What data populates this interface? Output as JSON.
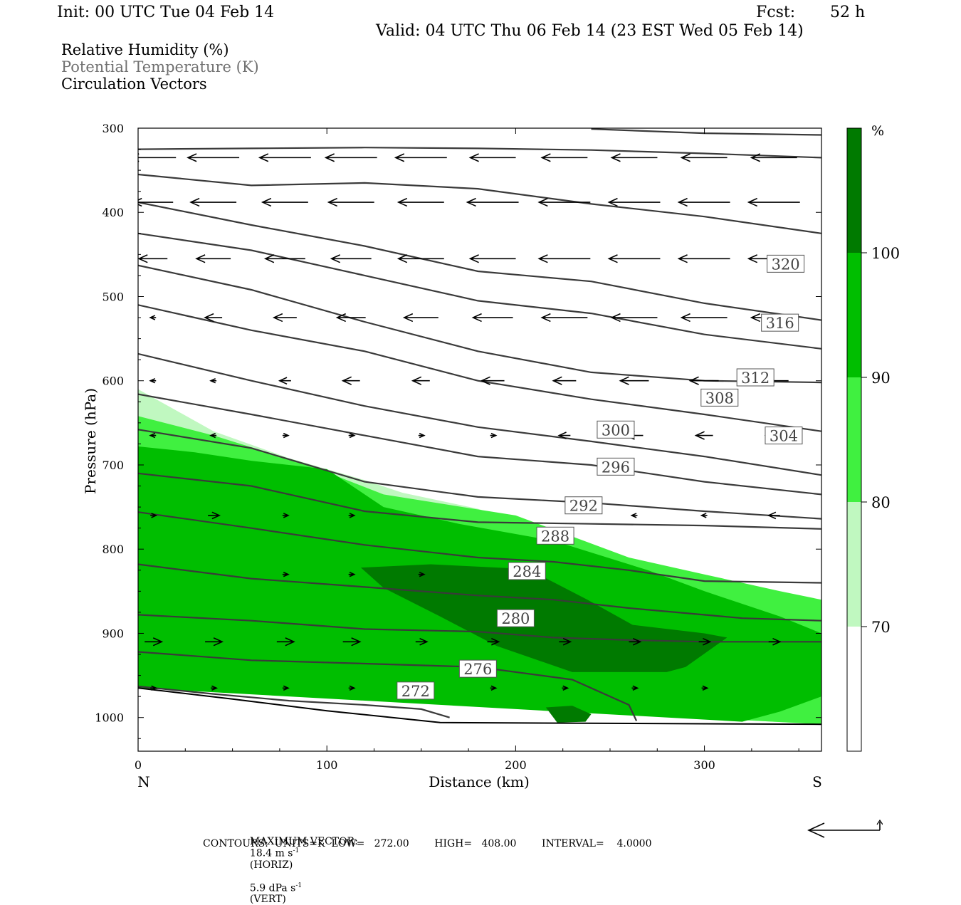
{
  "header": {
    "init": "Init: 00 UTC Tue 04 Feb 14",
    "fcst_label": "Fcst:",
    "fcst_value": "52 h",
    "valid": "Valid: 04 UTC Thu 06 Feb 14 (23 EST Wed 05 Feb 14)"
  },
  "fields": [
    {
      "label": "Relative Humidity (%)",
      "color": "#000000"
    },
    {
      "label": "Potential Temperature (K)",
      "color": "#707070"
    },
    {
      "label": "Circulation Vectors",
      "color": "#000000"
    }
  ],
  "chart_data": {
    "type": "cross-section",
    "x": {
      "label": "Distance (km)",
      "range": [
        0,
        362
      ],
      "ticks": [
        0,
        100,
        200,
        300
      ],
      "left_end": "N",
      "right_end": "S"
    },
    "y": {
      "label": "Pressure (hPa)",
      "range": [
        1040,
        300
      ],
      "ticks": [
        300,
        400,
        500,
        600,
        700,
        800,
        900,
        1000
      ]
    },
    "colorbar": {
      "unit": "%",
      "levels": [
        70,
        80,
        90,
        100
      ],
      "colors": [
        "#ffffff",
        "#c0f8c0",
        "#40f040",
        "#00be00",
        "#007a00"
      ]
    },
    "ground_pressure": [
      [
        0,
        965
      ],
      [
        50,
        978
      ],
      [
        100,
        992
      ],
      [
        160,
        1006
      ],
      [
        362,
        1008
      ]
    ],
    "rh_regions": [
      {
        "rh_class": "70-80",
        "color": "#c0f8c0",
        "outline": [
          [
            0,
            610
          ],
          [
            40,
            660
          ],
          [
            80,
            692
          ],
          [
            120,
            718
          ],
          [
            140,
            733
          ],
          [
            180,
            752
          ],
          [
            230,
            790
          ],
          [
            260,
            820
          ],
          [
            300,
            840
          ],
          [
            362,
            860
          ],
          [
            362,
            1008
          ],
          [
            0,
            965
          ]
        ]
      },
      {
        "rh_class": "80-90",
        "color": "#40f040",
        "outline": [
          [
            0,
            642
          ],
          [
            40,
            665
          ],
          [
            90,
            700
          ],
          [
            130,
            735
          ],
          [
            200,
            760
          ],
          [
            260,
            810
          ],
          [
            300,
            830
          ],
          [
            340,
            850
          ],
          [
            362,
            860
          ],
          [
            362,
            1008
          ],
          [
            0,
            965
          ]
        ]
      },
      {
        "rh_class": "90-100",
        "color": "#00be00",
        "outline": [
          [
            0,
            678
          ],
          [
            30,
            685
          ],
          [
            60,
            695
          ],
          [
            100,
            705
          ],
          [
            130,
            750
          ],
          [
            170,
            770
          ],
          [
            220,
            790
          ],
          [
            270,
            825
          ],
          [
            300,
            850
          ],
          [
            340,
            880
          ],
          [
            362,
            900
          ],
          [
            362,
            975
          ],
          [
            340,
            993
          ],
          [
            320,
            1005
          ],
          [
            0,
            965
          ]
        ]
      },
      {
        "rh_class": ">100",
        "color": "#007a00",
        "outline": [
          [
            118,
            822
          ],
          [
            155,
            818
          ],
          [
            200,
            823
          ],
          [
            212,
            830
          ],
          [
            238,
            860
          ],
          [
            262,
            890
          ],
          [
            300,
            900
          ],
          [
            312,
            905
          ],
          [
            290,
            940
          ],
          [
            280,
            946
          ],
          [
            230,
            946
          ],
          [
            190,
            915
          ],
          [
            160,
            880
          ],
          [
            130,
            846
          ]
        ]
      },
      {
        "rh_class": ">100",
        "color": "#007a00",
        "outline": [
          [
            216,
            988
          ],
          [
            230,
            986
          ],
          [
            240,
            996
          ],
          [
            237,
            1005
          ],
          [
            222,
            1006
          ]
        ]
      }
    ],
    "isentropes": [
      {
        "theta": 272,
        "points": [
          [
            0,
            963
          ],
          [
            40,
            972
          ],
          [
            80,
            980
          ],
          [
            120,
            985
          ],
          [
            150,
            990
          ],
          [
            165,
            1000
          ]
        ],
        "label_at": [
          147,
          968
        ]
      },
      {
        "theta": 276,
        "points": [
          [
            0,
            922
          ],
          [
            60,
            932
          ],
          [
            120,
            936
          ],
          [
            180,
            940
          ],
          [
            230,
            955
          ],
          [
            260,
            985
          ],
          [
            264,
            1004
          ]
        ],
        "label_at": [
          180,
          942
        ]
      },
      {
        "theta": 280,
        "points": [
          [
            0,
            878
          ],
          [
            60,
            885
          ],
          [
            120,
            895
          ],
          [
            180,
            898
          ],
          [
            220,
            905
          ],
          [
            260,
            908
          ],
          [
            300,
            910
          ],
          [
            362,
            910
          ]
        ],
        "label_at": [
          200,
          882
        ]
      },
      {
        "theta": 284,
        "points": [
          [
            0,
            818
          ],
          [
            60,
            835
          ],
          [
            120,
            845
          ],
          [
            180,
            855
          ],
          [
            220,
            860
          ],
          [
            260,
            870
          ],
          [
            320,
            882
          ],
          [
            362,
            885
          ]
        ],
        "label_at": [
          206,
          826
        ]
      },
      {
        "theta": 288,
        "points": [
          [
            0,
            756
          ],
          [
            60,
            775
          ],
          [
            120,
            795
          ],
          [
            180,
            810
          ],
          [
            220,
            815
          ],
          [
            260,
            825
          ],
          [
            300,
            838
          ],
          [
            362,
            840
          ]
        ],
        "label_at": [
          221,
          784
        ]
      },
      {
        "theta": 292,
        "points": [
          [
            0,
            710
          ],
          [
            60,
            725
          ],
          [
            120,
            755
          ],
          [
            180,
            768
          ],
          [
            240,
            770
          ],
          [
            300,
            772
          ],
          [
            362,
            776
          ]
        ],
        "label_at": [
          236,
          748
        ]
      },
      {
        "theta": 296,
        "points": [
          [
            0,
            658
          ],
          [
            60,
            680
          ],
          [
            120,
            720
          ],
          [
            180,
            738
          ],
          [
            240,
            745
          ],
          [
            300,
            755
          ],
          [
            362,
            764
          ]
        ],
        "label_at": [
          253,
          702
        ]
      },
      {
        "theta": 300,
        "points": [
          [
            0,
            616
          ],
          [
            60,
            640
          ],
          [
            120,
            665
          ],
          [
            180,
            690
          ],
          [
            240,
            700
          ],
          [
            300,
            720
          ],
          [
            362,
            735
          ]
        ],
        "label_at": [
          253,
          658
        ]
      },
      {
        "theta": 304,
        "points": [
          [
            0,
            568
          ],
          [
            60,
            600
          ],
          [
            120,
            630
          ],
          [
            180,
            655
          ],
          [
            240,
            672
          ],
          [
            300,
            690
          ],
          [
            362,
            712
          ]
        ],
        "label_at": [
          342,
          665
        ]
      },
      {
        "theta": 308,
        "points": [
          [
            0,
            510
          ],
          [
            60,
            540
          ],
          [
            120,
            565
          ],
          [
            180,
            600
          ],
          [
            240,
            622
          ],
          [
            300,
            640
          ],
          [
            362,
            660
          ]
        ],
        "label_at": [
          308,
          620
        ]
      },
      {
        "theta": 312,
        "points": [
          [
            0,
            463
          ],
          [
            60,
            492
          ],
          [
            120,
            530
          ],
          [
            180,
            565
          ],
          [
            240,
            590
          ],
          [
            300,
            600
          ],
          [
            362,
            602
          ]
        ],
        "label_at": [
          327,
          596
        ]
      },
      {
        "theta": 316,
        "points": [
          [
            0,
            425
          ],
          [
            60,
            445
          ],
          [
            120,
            475
          ],
          [
            180,
            505
          ],
          [
            240,
            520
          ],
          [
            300,
            545
          ],
          [
            362,
            562
          ]
        ],
        "label_at": [
          340,
          531
        ]
      },
      {
        "theta": 320,
        "points": [
          [
            0,
            388
          ],
          [
            60,
            415
          ],
          [
            120,
            440
          ],
          [
            180,
            470
          ],
          [
            240,
            482
          ],
          [
            300,
            508
          ],
          [
            362,
            528
          ]
        ],
        "label_at": [
          343,
          461
        ]
      },
      {
        "theta": 324,
        "points": [
          [
            0,
            355
          ],
          [
            60,
            368
          ],
          [
            120,
            365
          ],
          [
            180,
            372
          ],
          [
            240,
            390
          ],
          [
            300,
            405
          ],
          [
            362,
            425
          ]
        ],
        "label_at": [
          334,
          410
        ]
      },
      {
        "theta": 328,
        "points": [
          [
            0,
            325
          ],
          [
            60,
            324
          ],
          [
            120,
            323
          ],
          [
            180,
            324
          ],
          [
            240,
            326
          ],
          [
            300,
            330
          ],
          [
            362,
            335
          ]
        ],
        "label_at": null
      },
      {
        "theta": 332,
        "points": [
          [
            240,
            301
          ],
          [
            300,
            306
          ],
          [
            362,
            308
          ]
        ],
        "label_at": null
      }
    ],
    "isentrope_labels": [
      "272",
      "276",
      "280",
      "284",
      "288",
      "292",
      "296",
      "300",
      "304",
      "308",
      "312",
      "316",
      "320"
    ],
    "vector_rows": [
      {
        "p": 335,
        "u": [
          -8,
          -9,
          -9,
          -9,
          -9,
          -8,
          -8,
          -8,
          -8,
          -8
        ]
      },
      {
        "p": 388,
        "u": [
          -7,
          -8,
          -8,
          -8,
          -8,
          -9,
          -9,
          -9,
          -9,
          -9
        ]
      },
      {
        "p": 455,
        "u": [
          -5,
          -6,
          -7,
          -7,
          -8,
          -8,
          -9,
          -9,
          -9,
          -9
        ]
      },
      {
        "p": 525,
        "u": [
          -1,
          -3,
          -4,
          -5,
          -6,
          -7,
          -8,
          -8,
          -8,
          -8
        ]
      },
      {
        "p": 600,
        "u": [
          -1,
          -1,
          -2,
          -3,
          -3,
          -4,
          -4,
          -5,
          -5,
          -5
        ]
      },
      {
        "p": 665,
        "u": [
          -1,
          -1,
          1,
          1,
          1,
          1,
          -2,
          -3,
          -3,
          -3
        ]
      },
      {
        "p": 760,
        "u": [
          1,
          2,
          1,
          1,
          0,
          0,
          0,
          -1,
          -1,
          -2
        ]
      },
      {
        "p": 830,
        "u": [
          0,
          0,
          1,
          1,
          1,
          0,
          0,
          0,
          0,
          0
        ]
      },
      {
        "p": 910,
        "u": [
          3,
          3,
          3,
          3,
          2,
          2,
          2,
          2,
          2,
          2
        ]
      },
      {
        "p": 965,
        "u": [
          1,
          1,
          1,
          1,
          1,
          1,
          1,
          1,
          1,
          0
        ]
      }
    ],
    "vector_columns_km": [
      8,
      40,
      78,
      113,
      150,
      188,
      226,
      263,
      300,
      337
    ]
  },
  "footer": {
    "max_vector_label": "MAXIMUM VECTOR:",
    "horiz_value": "18.4 m s",
    "horiz_exp": "-1",
    "horiz_tag": "(HORIZ)",
    "vert_value": "5.9 dPa s",
    "vert_exp": "-1",
    "vert_tag": "(VERT)",
    "contours": "CONTOURS:  UNITS=K  LOW=   272.00        HIGH=   408.00        INTERVAL=    4.0000"
  }
}
